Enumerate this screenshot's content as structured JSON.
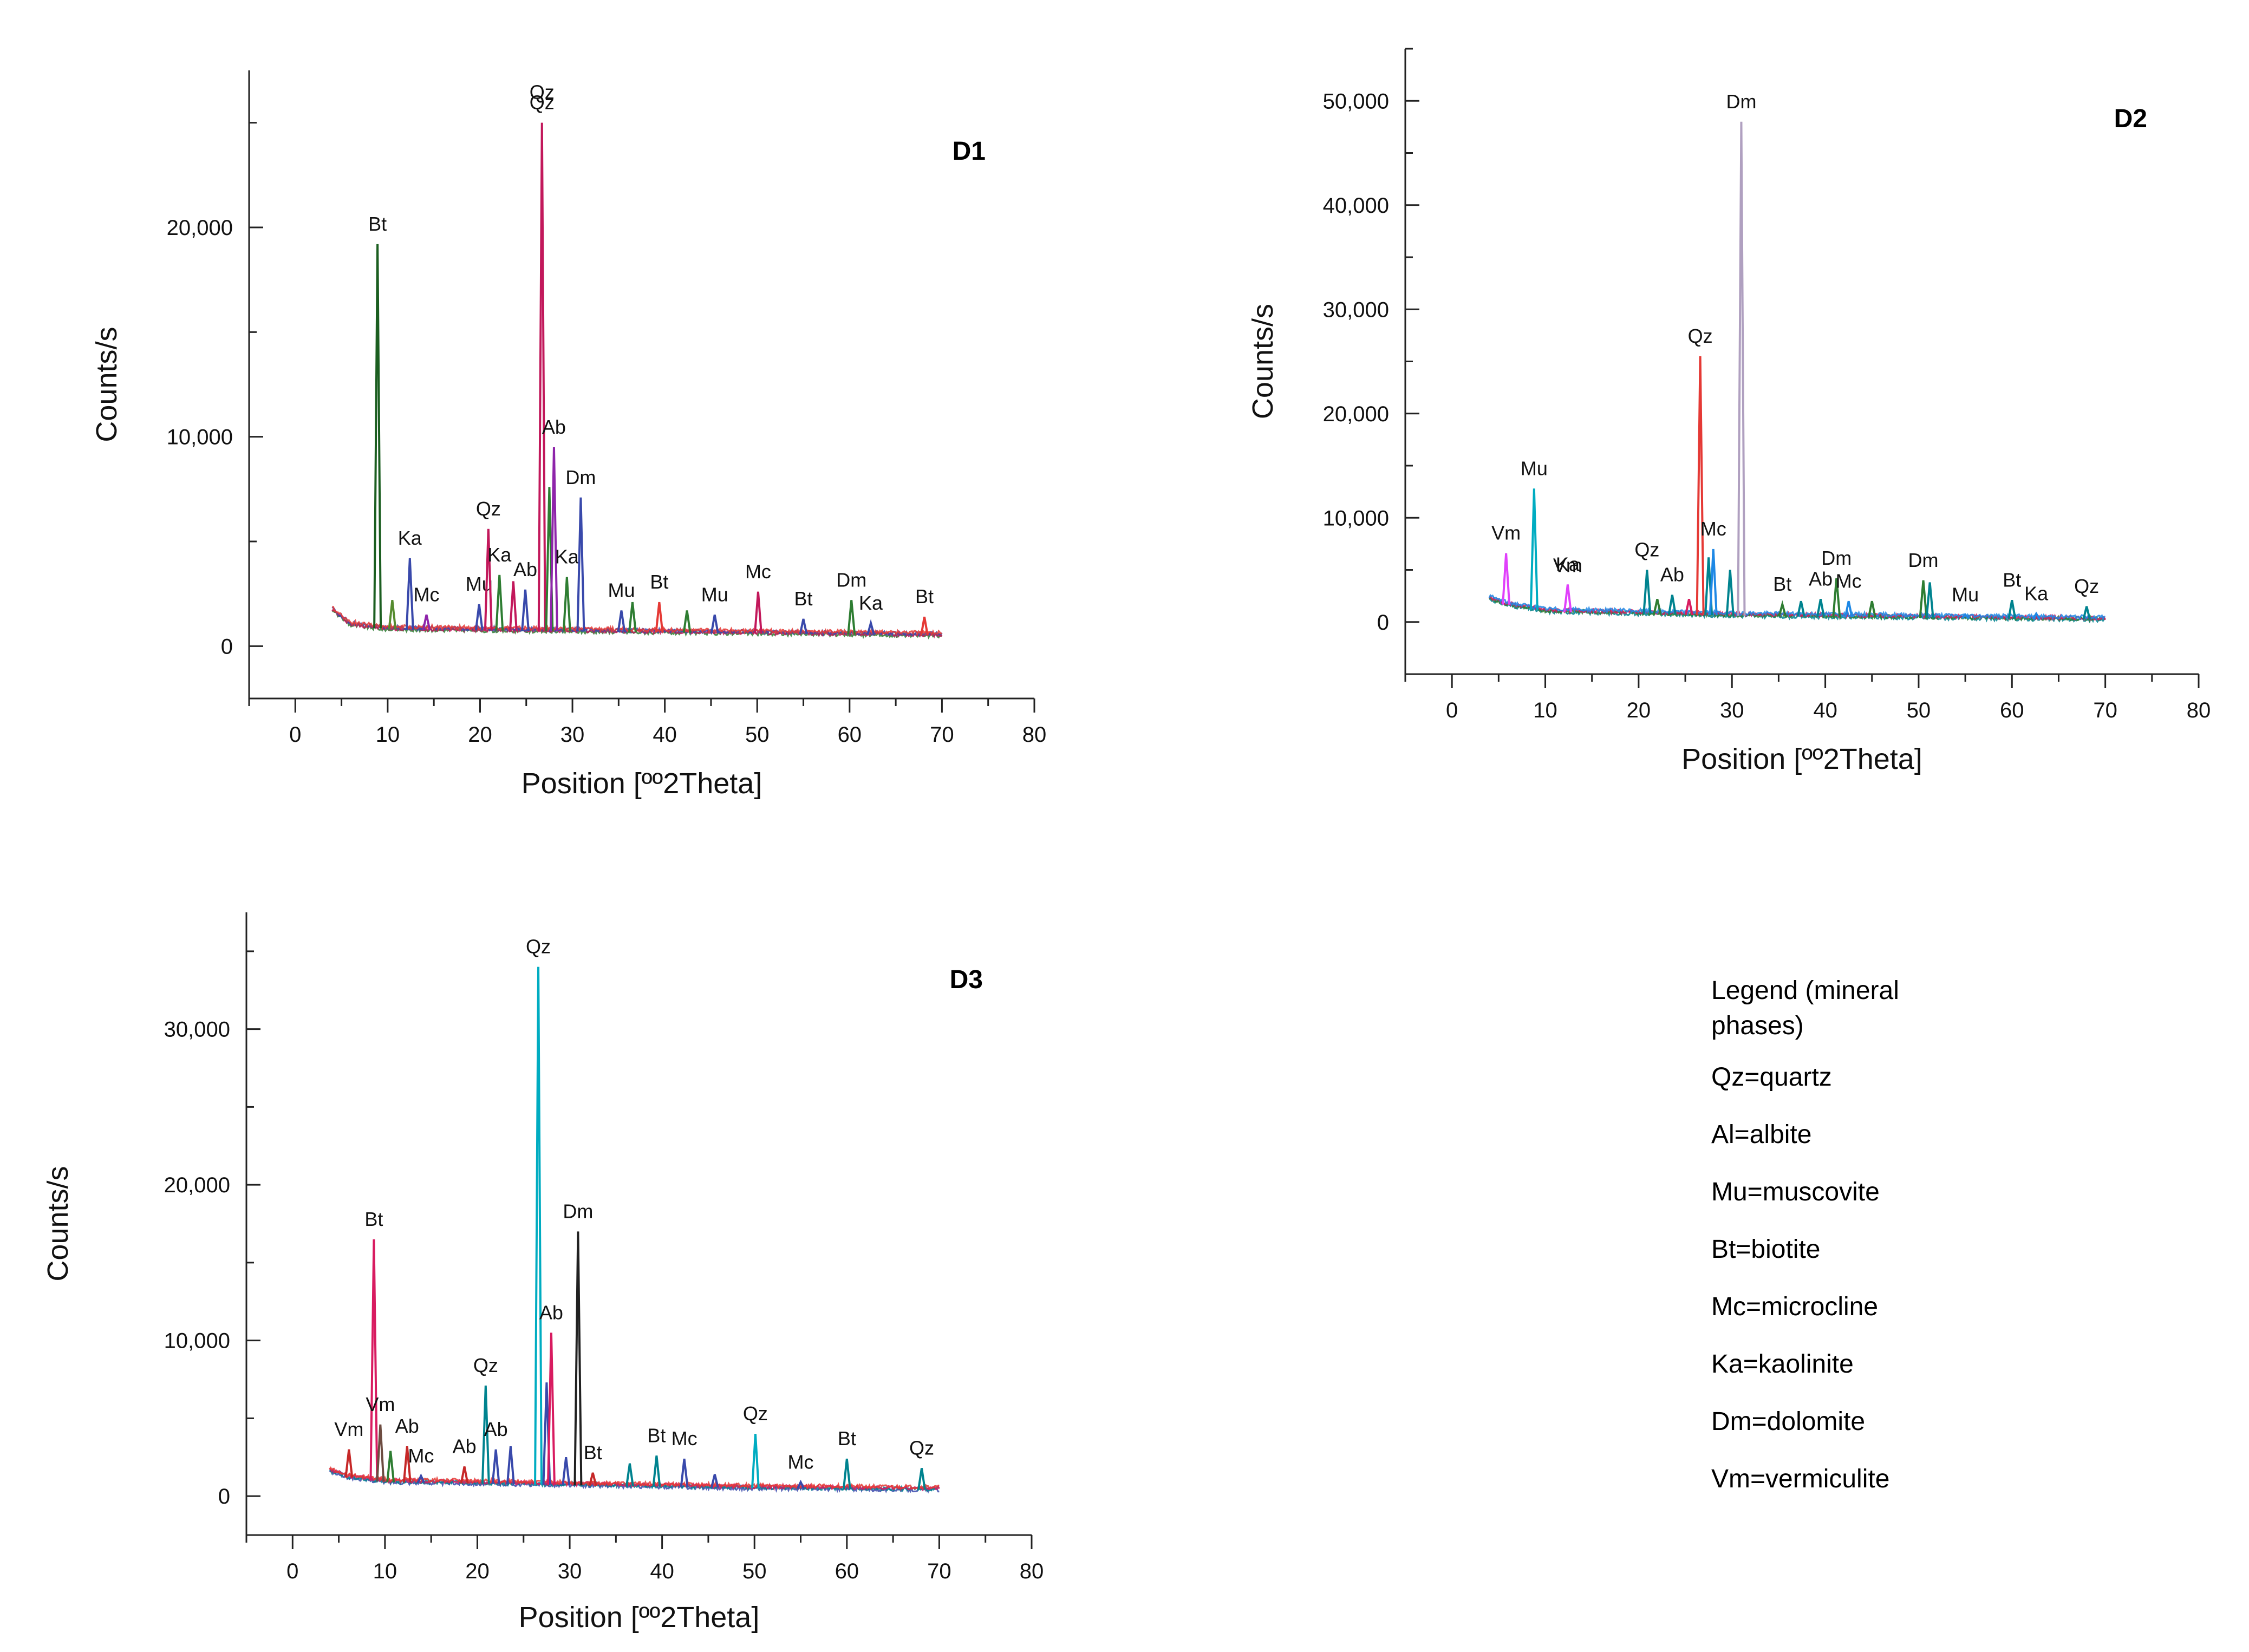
{
  "chart_data": [
    {
      "type": "line",
      "panel": "D1",
      "xlabel": "Position [ºº2Theta]",
      "ylabel": "Counts/s",
      "xlim": [
        -5,
        80
      ],
      "ylim": [
        -2500,
        27500
      ],
      "xticks": [
        0,
        10,
        20,
        30,
        40,
        50,
        60,
        70,
        80
      ],
      "xtick_labels": [
        "0",
        "10",
        "20",
        "30",
        "40",
        "50",
        "60",
        "70",
        "80"
      ],
      "yticks": [
        0,
        10000,
        20000
      ],
      "ytick_labels": [
        "0",
        "10,000",
        "20,000"
      ],
      "baseline": {
        "x": [
          4,
          6,
          10,
          20,
          30,
          40,
          50,
          60,
          70
        ],
        "y": [
          1700,
          1000,
          800,
          750,
          700,
          650,
          600,
          550,
          500
        ]
      },
      "series_colors": [
        "#2e7d32",
        "#c2185b",
        "#3949ab",
        "#e53935"
      ],
      "peaks": [
        {
          "x": 8.9,
          "y": 19200,
          "label": "Bt",
          "color": "#1b5e20"
        },
        {
          "x": 10.5,
          "y": 2200,
          "label": "",
          "color": "#558b2f"
        },
        {
          "x": 12.4,
          "y": 4200,
          "label": "Ka",
          "color": "#3949ab"
        },
        {
          "x": 14.2,
          "y": 1500,
          "label": "Mc",
          "color": "#8e24aa"
        },
        {
          "x": 19.9,
          "y": 2000,
          "label": "Mu",
          "color": "#3949ab"
        },
        {
          "x": 20.9,
          "y": 5600,
          "label": "Qz",
          "color": "#c2185b"
        },
        {
          "x": 22.1,
          "y": 3400,
          "label": "Ka",
          "color": "#2e7d32"
        },
        {
          "x": 23.6,
          "y": 3100,
          "label": "",
          "color": "#c2185b"
        },
        {
          "x": 24.9,
          "y": 2700,
          "label": "Ab",
          "color": "#3949ab"
        },
        {
          "x": 26.7,
          "y": 25000,
          "label": "Qz",
          "color": "#c2185b"
        },
        {
          "x": 27.5,
          "y": 7600,
          "label": "",
          "color": "#2e7d32"
        },
        {
          "x": 28.0,
          "y": 9500,
          "label": "Ab",
          "color": "#8e24aa"
        },
        {
          "x": 29.4,
          "y": 3300,
          "label": "Ka",
          "color": "#2e7d32"
        },
        {
          "x": 30.9,
          "y": 7100,
          "label": "Dm",
          "color": "#3949ab"
        },
        {
          "x": 35.3,
          "y": 1700,
          "label": "Mu",
          "color": "#3949ab"
        },
        {
          "x": 36.5,
          "y": 2100,
          "label": "",
          "color": "#2e7d32"
        },
        {
          "x": 39.4,
          "y": 2100,
          "label": "Bt",
          "color": "#e53935"
        },
        {
          "x": 42.4,
          "y": 1700,
          "label": "",
          "color": "#2e7d32"
        },
        {
          "x": 45.4,
          "y": 1500,
          "label": "Mu",
          "color": "#3949ab"
        },
        {
          "x": 50.1,
          "y": 2600,
          "label": "Mc",
          "color": "#c2185b"
        },
        {
          "x": 55.0,
          "y": 1300,
          "label": "Bt",
          "color": "#3949ab"
        },
        {
          "x": 60.2,
          "y": 2200,
          "label": "Dm",
          "color": "#2e7d32"
        },
        {
          "x": 62.3,
          "y": 1100,
          "label": "Ka",
          "color": "#3949ab"
        },
        {
          "x": 68.1,
          "y": 1400,
          "label": "Bt",
          "color": "#e53935"
        }
      ],
      "extra_labels": [
        {
          "text": "Qz",
          "x": 26.7,
          "y": 25500
        }
      ]
    },
    {
      "type": "line",
      "panel": "D2",
      "xlabel": "Position [ºº2Theta]",
      "ylabel": "Counts/s",
      "xlim": [
        -5,
        80
      ],
      "ylim": [
        -5000,
        55000
      ],
      "xticks": [
        0,
        10,
        20,
        30,
        40,
        50,
        60,
        70,
        80
      ],
      "xtick_labels": [
        "0",
        "10",
        "20",
        "30",
        "40",
        "50",
        "60",
        "70",
        "80"
      ],
      "yticks": [
        0,
        10000,
        20000,
        30000,
        40000,
        50000
      ],
      "ytick_labels": [
        "0",
        "10,000",
        "20,000",
        "30,000",
        "40,000",
        "50,000"
      ],
      "baseline": {
        "x": [
          4,
          6,
          10,
          20,
          30,
          40,
          50,
          60,
          70
        ],
        "y": [
          2200,
          1600,
          1000,
          800,
          600,
          500,
          400,
          300,
          200
        ]
      },
      "series_colors": [
        "#00838f",
        "#2e7d32",
        "#d81b60",
        "#1e88e5"
      ],
      "peaks": [
        {
          "x": 5.8,
          "y": 6600,
          "label": "Vm",
          "color": "#e040fb"
        },
        {
          "x": 8.8,
          "y": 12800,
          "label": "Mu",
          "color": "#00acc1"
        },
        {
          "x": 12.4,
          "y": 3600,
          "label": "Ka",
          "color": "#e040fb"
        },
        {
          "x": 20.9,
          "y": 5000,
          "label": "Qz",
          "color": "#00838f"
        },
        {
          "x": 22.0,
          "y": 2200,
          "label": "",
          "color": "#2e7d32"
        },
        {
          "x": 23.6,
          "y": 2600,
          "label": "Ab",
          "color": "#00838f"
        },
        {
          "x": 25.4,
          "y": 2200,
          "label": "",
          "color": "#d81b60"
        },
        {
          "x": 26.6,
          "y": 25500,
          "label": "Qz",
          "color": "#e53935"
        },
        {
          "x": 27.5,
          "y": 6200,
          "label": "",
          "color": "#00838f"
        },
        {
          "x": 28.0,
          "y": 7000,
          "label": "Mc",
          "color": "#1e88e5"
        },
        {
          "x": 29.8,
          "y": 5000,
          "label": "",
          "color": "#00838f"
        },
        {
          "x": 31.0,
          "y": 48000,
          "label": "Dm",
          "color": "#b0a0c0"
        },
        {
          "x": 35.4,
          "y": 1700,
          "label": "Bt",
          "color": "#2e7d32"
        },
        {
          "x": 37.4,
          "y": 2000,
          "label": "",
          "color": "#00838f"
        },
        {
          "x": 39.5,
          "y": 2200,
          "label": "Ab",
          "color": "#00838f"
        },
        {
          "x": 41.2,
          "y": 4200,
          "label": "Dm",
          "color": "#2e7d32"
        },
        {
          "x": 42.5,
          "y": 2000,
          "label": "Mc",
          "color": "#1e88e5"
        },
        {
          "x": 45.0,
          "y": 2000,
          "label": "",
          "color": "#2e7d32"
        },
        {
          "x": 50.5,
          "y": 4000,
          "label": "Dm",
          "color": "#2e7d32"
        },
        {
          "x": 51.2,
          "y": 3800,
          "label": "",
          "color": "#00838f"
        },
        {
          "x": 55.0,
          "y": 700,
          "label": "Mu",
          "color": "#1e88e5"
        },
        {
          "x": 60.0,
          "y": 2100,
          "label": "Bt",
          "color": "#00838f"
        },
        {
          "x": 62.6,
          "y": 800,
          "label": "Ka",
          "color": "#1e88e5"
        },
        {
          "x": 68.0,
          "y": 1500,
          "label": "Qz",
          "color": "#00838f"
        }
      ],
      "extra_labels": [
        {
          "text": "Vm",
          "x": 12.4,
          "y": 3500
        }
      ]
    },
    {
      "type": "line",
      "panel": "D3",
      "xlabel": "Position [ºº2Theta]",
      "ylabel": "Counts/s",
      "xlim": [
        -5,
        80
      ],
      "ylim": [
        -2500,
        37500
      ],
      "xticks": [
        0,
        10,
        20,
        30,
        40,
        50,
        60,
        70,
        80
      ],
      "xtick_labels": [
        "0",
        "10",
        "20",
        "30",
        "40",
        "50",
        "60",
        "70",
        "80"
      ],
      "yticks": [
        0,
        10000,
        20000,
        30000
      ],
      "ytick_labels": [
        "0",
        "10,000",
        "20,000",
        "30,000"
      ],
      "baseline": {
        "x": [
          4,
          6,
          10,
          20,
          30,
          40,
          50,
          60,
          70
        ],
        "y": [
          1600,
          1200,
          900,
          800,
          700,
          600,
          500,
          450,
          400
        ]
      },
      "series_colors": [
        "#3949ab",
        "#00838f",
        "#d81b60",
        "#e53935"
      ],
      "peaks": [
        {
          "x": 6.1,
          "y": 3000,
          "label": "Vm",
          "color": "#c62828"
        },
        {
          "x": 8.8,
          "y": 16500,
          "label": "Bt",
          "color": "#d81b60"
        },
        {
          "x": 9.5,
          "y": 4600,
          "label": "Vm",
          "color": "#6d4c41"
        },
        {
          "x": 10.6,
          "y": 2900,
          "label": "",
          "color": "#2e7d32"
        },
        {
          "x": 12.4,
          "y": 3200,
          "label": "Ab",
          "color": "#c62828"
        },
        {
          "x": 13.9,
          "y": 1300,
          "label": "Mc",
          "color": "#3949ab"
        },
        {
          "x": 18.6,
          "y": 1900,
          "label": "Ab",
          "color": "#c62828"
        },
        {
          "x": 20.9,
          "y": 7100,
          "label": "Qz",
          "color": "#00838f"
        },
        {
          "x": 22.0,
          "y": 3000,
          "label": "Ab",
          "color": "#3949ab"
        },
        {
          "x": 23.6,
          "y": 3200,
          "label": "",
          "color": "#3949ab"
        },
        {
          "x": 26.6,
          "y": 34000,
          "label": "Qz",
          "color": "#00acc1"
        },
        {
          "x": 27.5,
          "y": 7300,
          "label": "",
          "color": "#3949ab"
        },
        {
          "x": 28.0,
          "y": 10500,
          "label": "Ab",
          "color": "#d81b60"
        },
        {
          "x": 29.6,
          "y": 2500,
          "label": "",
          "color": "#3949ab"
        },
        {
          "x": 30.9,
          "y": 17000,
          "label": "Dm",
          "color": "#212121"
        },
        {
          "x": 32.5,
          "y": 1500,
          "label": "Bt",
          "color": "#c62828"
        },
        {
          "x": 36.5,
          "y": 2100,
          "label": "",
          "color": "#00838f"
        },
        {
          "x": 39.4,
          "y": 2600,
          "label": "Bt",
          "color": "#00838f"
        },
        {
          "x": 42.4,
          "y": 2400,
          "label": "Mc",
          "color": "#3949ab"
        },
        {
          "x": 45.7,
          "y": 1400,
          "label": "",
          "color": "#3949ab"
        },
        {
          "x": 50.1,
          "y": 4000,
          "label": "Qz",
          "color": "#00acc1"
        },
        {
          "x": 55.0,
          "y": 900,
          "label": "Mc",
          "color": "#3949ab"
        },
        {
          "x": 60.0,
          "y": 2400,
          "label": "Bt",
          "color": "#00838f"
        },
        {
          "x": 68.1,
          "y": 1800,
          "label": "Qz",
          "color": "#00838f"
        }
      ],
      "extra_labels": []
    }
  ],
  "legend": {
    "title_line1": "Legend (mineral",
    "title_line2": "phases)",
    "entries": [
      {
        "code": "Qz",
        "name": "quartz"
      },
      {
        "code": "Al",
        "name": "albite"
      },
      {
        "code": "Mu",
        "name": "muscovite"
      },
      {
        "code": "Bt",
        "name": "biotite"
      },
      {
        "code": "Mc",
        "name": "microcline"
      },
      {
        "code": "Ka",
        "name": "kaolinite"
      },
      {
        "code": "Dm",
        "name": "dolomite"
      },
      {
        "code": "Vm",
        "name": "vermiculite"
      }
    ]
  }
}
